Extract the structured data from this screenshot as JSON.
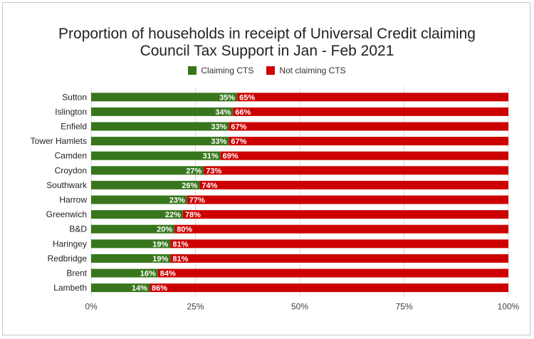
{
  "chart_data": {
    "type": "bar",
    "orientation": "horizontal",
    "stacked": true,
    "title_lines": [
      "Proportion of households in receipt of Universal Credit claiming",
      "Council Tax Support in Jan - Feb 2021"
    ],
    "categories": [
      "Sutton",
      "Islington",
      "Enfield",
      "Tower Hamlets",
      "Camden",
      "Croydon",
      "Southwark",
      "Harrow",
      "Greenwich",
      "B&D",
      "Haringey",
      "Redbridge",
      "Brent",
      "Lambeth"
    ],
    "series": [
      {
        "name": "Claiming CTS",
        "color": "#38761d",
        "values": [
          35,
          34,
          33,
          33,
          31,
          27,
          26,
          23,
          22,
          20,
          19,
          19,
          16,
          14
        ]
      },
      {
        "name": "Not claiming CTS",
        "color": "#cc0000",
        "values": [
          65,
          66,
          67,
          67,
          69,
          73,
          74,
          77,
          78,
          80,
          81,
          81,
          84,
          86
        ]
      }
    ],
    "xlim": [
      0,
      100
    ],
    "x_ticks": [
      "0%",
      "25%",
      "50%",
      "75%",
      "100%"
    ],
    "grid": true,
    "legend_position": "top"
  }
}
